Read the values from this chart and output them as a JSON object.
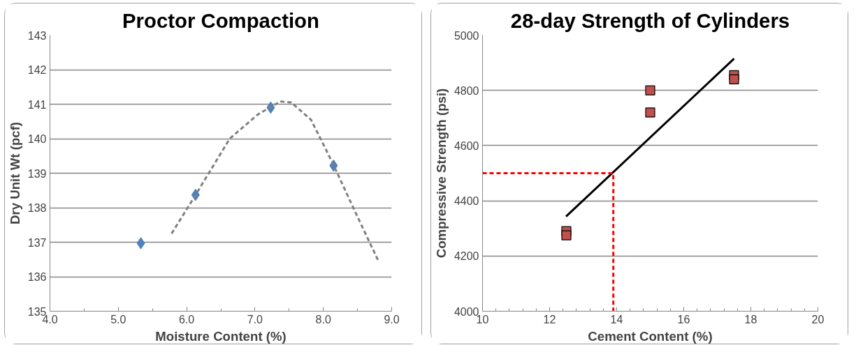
{
  "chart_data": [
    {
      "type": "scatter",
      "title": "Proctor Compaction",
      "xlabel": "Moisture Content (%)",
      "ylabel": "Dry Unit Wt (pcf)",
      "xlim": [
        4.0,
        9.0
      ],
      "xticks": [
        {
          "value": 4,
          "label": "4.0"
        },
        {
          "value": 5,
          "label": "5.0"
        },
        {
          "value": 6,
          "label": "6.0"
        },
        {
          "value": 7,
          "label": "7.0"
        },
        {
          "value": 8,
          "label": "8.0"
        },
        {
          "value": 9,
          "label": "9.0"
        }
      ],
      "ylim": [
        135,
        143
      ],
      "yticks": [
        135,
        136,
        137,
        138,
        139,
        140,
        141,
        142,
        143
      ],
      "grid": "y",
      "series": [
        {
          "marker": "diamond",
          "color": "#4f81bd",
          "x": [
            5.33,
            6.13,
            7.23,
            8.15
          ],
          "values": [
            136.97,
            138.37,
            140.9,
            139.22
          ]
        },
        {
          "type": "line",
          "line_style": "dashed",
          "marker": "none",
          "color": "#808080",
          "x": [
            5.78,
            6.14,
            6.63,
            7.04,
            7.37,
            7.53,
            7.82,
            8.14,
            8.44,
            8.8
          ],
          "values": [
            137.25,
            138.4,
            140.0,
            140.7,
            141.08,
            141.05,
            140.55,
            139.28,
            137.99,
            136.48
          ]
        }
      ]
    },
    {
      "type": "scatter",
      "title": "28-day Strength of Cylinders",
      "xlabel": "Cement Content (%)",
      "ylabel": "Compressive Strength (psi)",
      "xlim": [
        10,
        20
      ],
      "xticks": [
        10,
        12,
        14,
        16,
        18,
        20
      ],
      "ylim": [
        4000,
        5000
      ],
      "yticks": [
        4000,
        4200,
        4400,
        4600,
        4800,
        5000
      ],
      "grid": "y",
      "series": [
        {
          "marker": "square",
          "color": "#c0504d",
          "x": [
            12.5,
            12.5,
            15,
            15,
            17.5,
            17.5
          ],
          "values": [
            4290,
            4275,
            4800,
            4720,
            4855,
            4840
          ]
        },
        {
          "type": "line",
          "line_style": "solid",
          "marker": "none",
          "color": "#000000",
          "x": [
            12.49,
            17.5
          ],
          "values": [
            4343,
            4915
          ]
        },
        {
          "type": "line",
          "line_style": "dashed",
          "marker": "none",
          "color": "#ff0000",
          "x": [
            10,
            13.9,
            13.9
          ],
          "values": [
            4500,
            4500,
            4000
          ]
        }
      ]
    }
  ]
}
